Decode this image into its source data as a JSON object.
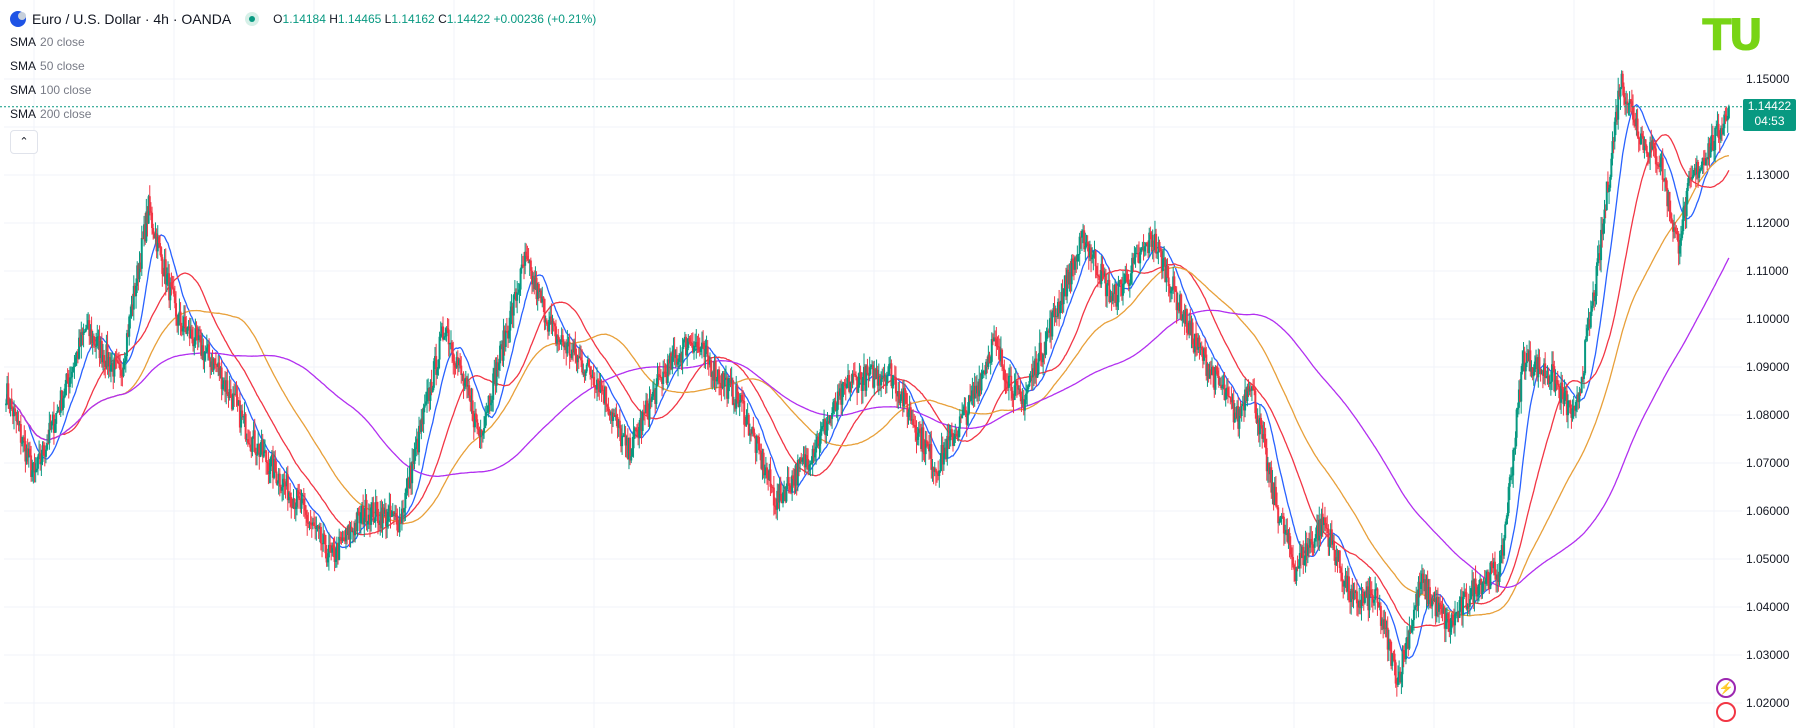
{
  "header": {
    "symbol": "Euro / U.S. Dollar · 4h · OANDA",
    "ohlc": [
      {
        "k": "O",
        "v": "1.14184"
      },
      {
        "k": "H",
        "v": "1.14465"
      },
      {
        "k": "L",
        "v": "1.14162"
      },
      {
        "k": "C",
        "v": "1.14422"
      }
    ],
    "change": "+0.00236 (+0.21%)"
  },
  "indicators": [
    {
      "name": "SMA",
      "params": "20 close",
      "color": "#2962ff"
    },
    {
      "name": "SMA",
      "params": "50 close",
      "color": "#f23645"
    },
    {
      "name": "SMA",
      "params": "100 close",
      "color": "#4caf50"
    },
    {
      "name": "SMA",
      "params": "200 close",
      "color": "#9c27b0"
    }
  ],
  "collapse_icon": "chevron-up-icon",
  "current_price": {
    "value": "1.14422",
    "countdown": "04:53"
  },
  "logo": "TU",
  "colors": {
    "up": "#089981",
    "down": "#f23645",
    "sma20": "#2962ff",
    "sma50": "#f23645",
    "sma100": "#e8a03a",
    "sma200": "#b22ff0",
    "grid": "#f0f3fa",
    "axis_text": "#131722"
  },
  "chart_data": {
    "type": "candlestick",
    "symbol": "EUR/USD",
    "timeframe": "4h",
    "ylim": [
      1.0185,
      1.1595
    ],
    "y_ticks": [
      "1.02000",
      "1.03000",
      "1.04000",
      "1.05000",
      "1.06000",
      "1.07000",
      "1.08000",
      "1.09000",
      "1.10000",
      "1.11000",
      "1.12000",
      "1.13000",
      "1.14000",
      "1.15000"
    ],
    "price_anchors": [
      [
        0,
        1.085
      ],
      [
        25,
        1.067
      ],
      [
        70,
        1.098
      ],
      [
        100,
        1.088
      ],
      [
        125,
        1.123
      ],
      [
        150,
        1.1
      ],
      [
        185,
        1.09
      ],
      [
        215,
        1.075
      ],
      [
        255,
        1.062
      ],
      [
        285,
        1.05
      ],
      [
        315,
        1.06
      ],
      [
        345,
        1.058
      ],
      [
        385,
        1.099
      ],
      [
        415,
        1.076
      ],
      [
        455,
        1.112
      ],
      [
        480,
        1.097
      ],
      [
        520,
        1.087
      ],
      [
        545,
        1.072
      ],
      [
        575,
        1.088
      ],
      [
        600,
        1.096
      ],
      [
        645,
        1.082
      ],
      [
        675,
        1.062
      ],
      [
        705,
        1.072
      ],
      [
        740,
        1.087
      ],
      [
        775,
        1.089
      ],
      [
        815,
        1.069
      ],
      [
        845,
        1.082
      ],
      [
        865,
        1.095
      ],
      [
        890,
        1.082
      ],
      [
        930,
        1.108
      ],
      [
        945,
        1.117
      ],
      [
        970,
        1.104
      ],
      [
        1005,
        1.117
      ],
      [
        1040,
        1.096
      ],
      [
        1080,
        1.079
      ],
      [
        1090,
        1.088
      ],
      [
        1110,
        1.064
      ],
      [
        1130,
        1.048
      ],
      [
        1155,
        1.058
      ],
      [
        1180,
        1.041
      ],
      [
        1200,
        1.042
      ],
      [
        1220,
        1.025
      ],
      [
        1240,
        1.045
      ],
      [
        1265,
        1.036
      ],
      [
        1290,
        1.045
      ],
      [
        1310,
        1.048
      ],
      [
        1330,
        1.092
      ],
      [
        1355,
        1.088
      ],
      [
        1375,
        1.079
      ],
      [
        1395,
        1.11
      ],
      [
        1415,
        1.15
      ],
      [
        1435,
        1.137
      ],
      [
        1450,
        1.133
      ],
      [
        1465,
        1.115
      ],
      [
        1475,
        1.127
      ],
      [
        1488,
        1.134
      ],
      [
        1500,
        1.138
      ],
      [
        1510,
        1.1442
      ]
    ],
    "last": {
      "open": 1.14184,
      "high": 1.14465,
      "low": 1.14162,
      "close": 1.14422
    }
  }
}
